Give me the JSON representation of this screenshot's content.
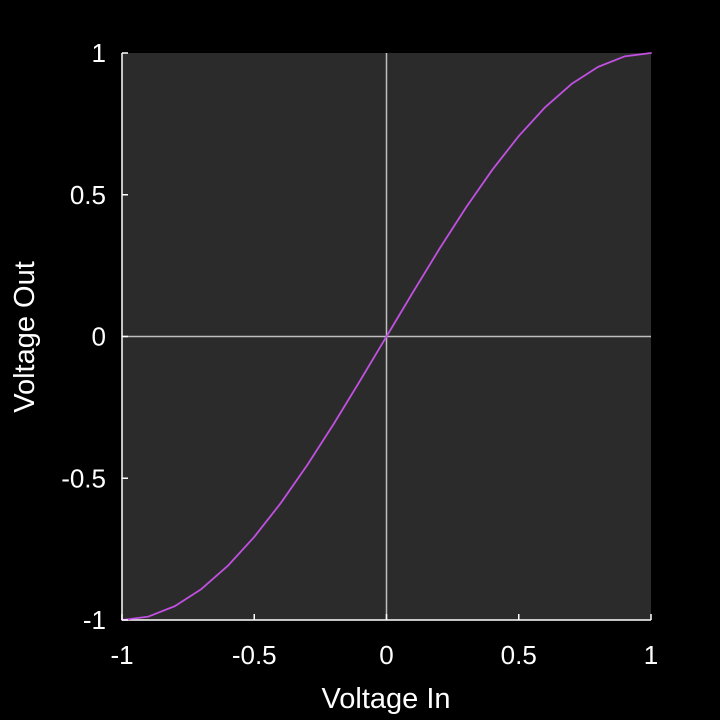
{
  "chart_data": {
    "type": "line",
    "title": "",
    "xlabel": "Voltage In",
    "ylabel": "Voltage Out",
    "xlim": [
      -1,
      1
    ],
    "ylim": [
      -1,
      1
    ],
    "x_ticks": [
      -1,
      -0.5,
      0,
      0.5,
      1
    ],
    "x_tick_labels": [
      "-1",
      "-0.5",
      "0",
      "0.5",
      "1"
    ],
    "y_ticks": [
      -1,
      -0.5,
      0,
      0.5,
      1
    ],
    "y_tick_labels": [
      "-1",
      "-0.5",
      "0",
      "0.5",
      "1"
    ],
    "grid": false,
    "zero_lines": true,
    "legend": "none",
    "series": [
      {
        "color": "#c050e0",
        "x": [
          -1,
          -0.9,
          -0.8,
          -0.7,
          -0.6,
          -0.5,
          -0.4,
          -0.3,
          -0.2,
          -0.1,
          0,
          0.1,
          0.2,
          0.3,
          0.4,
          0.5,
          0.6,
          0.7,
          0.8,
          0.9,
          1
        ],
        "y": [
          -1,
          -0.988,
          -0.951,
          -0.891,
          -0.809,
          -0.707,
          -0.588,
          -0.454,
          -0.309,
          -0.156,
          0,
          0.156,
          0.309,
          0.454,
          0.588,
          0.707,
          0.809,
          0.891,
          0.951,
          0.988,
          1
        ]
      }
    ]
  },
  "colors": {
    "page_background": "#000000",
    "plot_background": "#2b2b2b",
    "zero_line": "#bfbfbf",
    "axis": "#ffffff",
    "text": "#ffffff",
    "curve": "#c050e0"
  }
}
